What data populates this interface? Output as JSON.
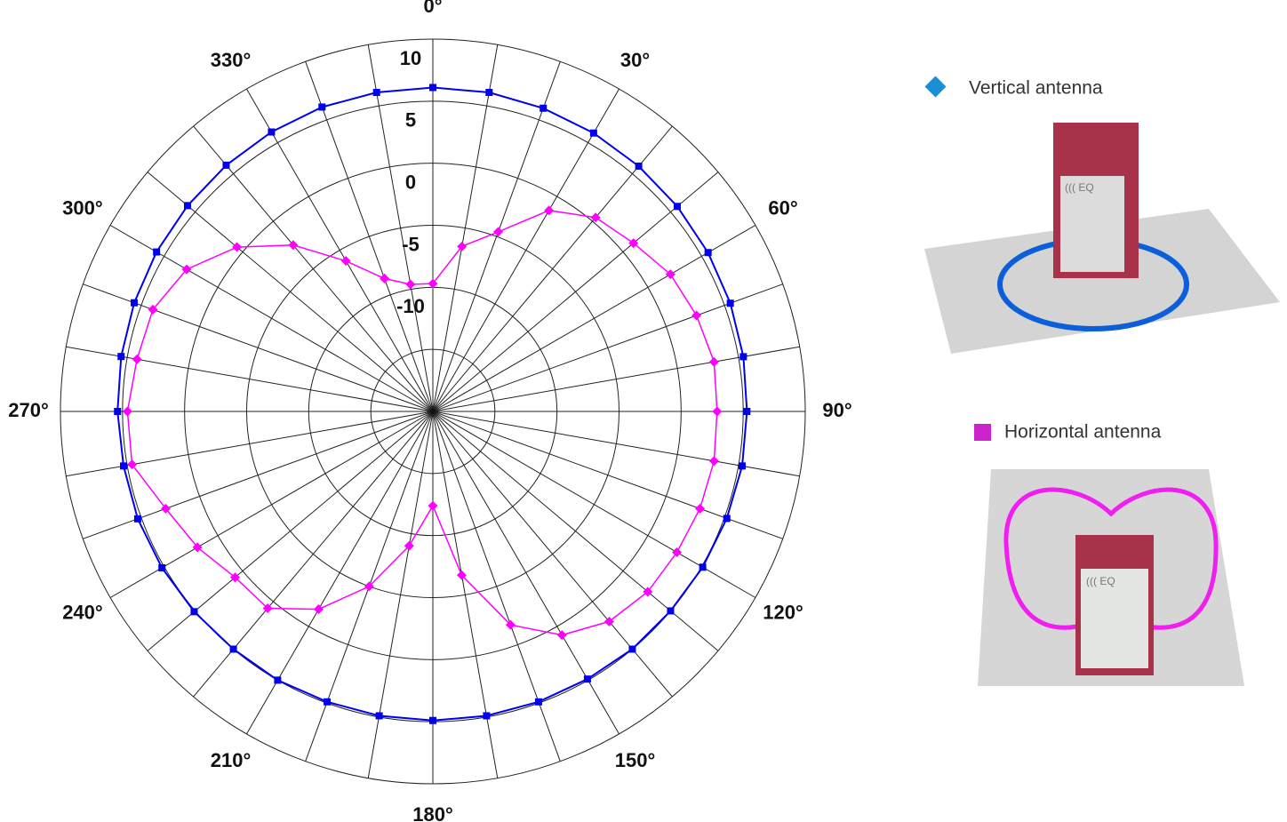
{
  "chart_data": {
    "type": "polar",
    "theta": [
      0,
      10,
      20,
      30,
      40,
      50,
      60,
      70,
      80,
      90,
      100,
      110,
      120,
      130,
      140,
      150,
      160,
      170,
      180,
      190,
      200,
      210,
      220,
      230,
      240,
      250,
      260,
      270,
      280,
      290,
      300,
      310,
      320,
      330,
      340,
      350
    ],
    "series": [
      {
        "name": "Vertical antenna",
        "color": "#0000ee",
        "legend_color": "#1b8fd6",
        "marker": "square",
        "values": [
          6.1,
          6.1,
          6.0,
          5.9,
          5.8,
          5.7,
          5.6,
          5.5,
          5.4,
          5.3,
          5.3,
          5.2,
          5.1,
          5.0,
          5.0,
          4.9,
          4.9,
          4.9,
          4.9,
          4.9,
          4.9,
          5.0,
          5.0,
          5.1,
          5.2,
          5.3,
          5.3,
          5.4,
          5.5,
          5.6,
          5.7,
          5.8,
          5.9,
          6.0,
          6.1,
          6.1
        ]
      },
      {
        "name": "Horizontal antenna",
        "color": "#ff00ff",
        "legend_color": "#cc22cc",
        "marker": "diamond",
        "values": [
          -9.7,
          -6.5,
          -4.6,
          -1.3,
          0.4,
          1.1,
          2.1,
          2.6,
          3.0,
          2.9,
          3.0,
          2.9,
          2.7,
          2.6,
          2.1,
          0.8,
          -1.7,
          -6.6,
          -12.4,
          -9.0,
          -5.0,
          -1.6,
          0.7,
          0.8,
          1.9,
          2.9,
          4.6,
          4.6,
          4.2,
          4.0,
          2.9,
          0.6,
          -2.5,
          -6.0,
          -8.6,
          -9.6
        ]
      }
    ],
    "rlim": [
      -20,
      10
    ],
    "rticks": [
      -10,
      -5,
      0,
      5,
      10
    ],
    "rgrid_minor": [
      -15
    ],
    "thetaticks": [
      {
        "value": 0,
        "label": "0°"
      },
      {
        "value": 30,
        "label": "30°"
      },
      {
        "value": 60,
        "label": "60°"
      },
      {
        "value": 90,
        "label": "90°"
      },
      {
        "value": 120,
        "label": "120°"
      },
      {
        "value": 150,
        "label": "150°"
      },
      {
        "value": 180,
        "label": "180°"
      },
      {
        "value": 210,
        "label": "210°"
      },
      {
        "value": 240,
        "label": "240°"
      },
      {
        "value": 270,
        "label": "270°"
      },
      {
        "value": 300,
        "label": "300°"
      },
      {
        "value": 330,
        "label": "330°"
      }
    ]
  }
}
